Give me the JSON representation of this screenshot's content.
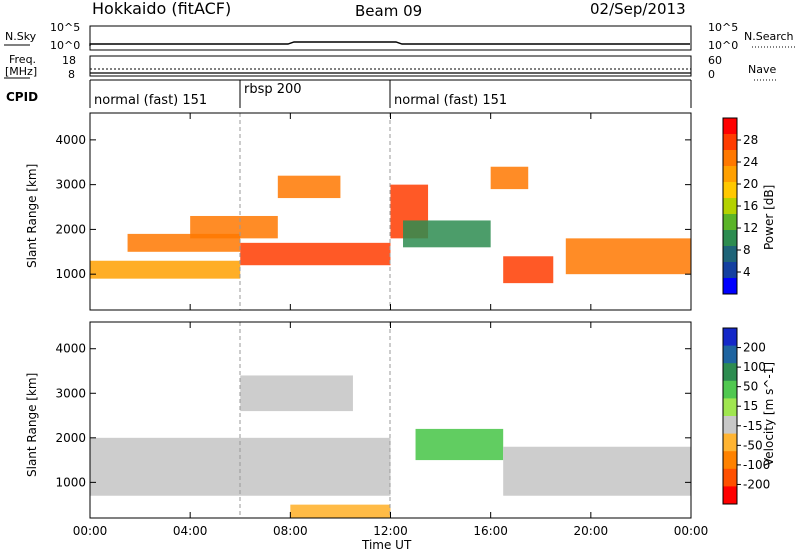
{
  "header": {
    "station": "Hokkaido (fitACF)",
    "beam": "Beam 09",
    "date": "02/Sep/2013"
  },
  "noise_panel": {
    "left_label": "N.Sky",
    "right_label": "N.Search",
    "left_ticks": [
      "10^5",
      "10^0"
    ],
    "right_ticks": [
      "10^5",
      "10^0"
    ]
  },
  "freq_panel": {
    "left_label_1": "Freq.",
    "left_label_2": "[MHz]",
    "left_ticks": [
      "18",
      "8"
    ],
    "right_label": "Nave",
    "right_ticks": [
      "60",
      "0"
    ]
  },
  "cpid_panel": {
    "label": "CPID",
    "segments": [
      {
        "name": "normal (fast) 151",
        "start_hour": 0,
        "end_hour": 6
      },
      {
        "name": "rbsp 200",
        "start_hour": 6,
        "end_hour": 12
      },
      {
        "name": "normal (fast) 151",
        "start_hour": 12,
        "end_hour": 24
      }
    ]
  },
  "time_axis": {
    "title": "Time UT",
    "ticks": [
      "00:00",
      "04:00",
      "08:00",
      "12:00",
      "16:00",
      "20:00",
      "00:00"
    ]
  },
  "range_axis": {
    "title": "Slant Range [km]",
    "ticks": [
      "1000",
      "2000",
      "3000",
      "4000"
    ]
  },
  "power_colorbar": {
    "title": "Power [dB]",
    "labels": [
      "28",
      "24",
      "20",
      "16",
      "12",
      "8",
      "4"
    ],
    "colors": [
      "#ff0000",
      "#ff3c00",
      "#ff7800",
      "#ffa000",
      "#ffc800",
      "#b4d200",
      "#5ab428",
      "#2d8c50",
      "#1e6478",
      "#1440a0",
      "#0000ff"
    ]
  },
  "velocity_colorbar": {
    "title": "Velocity [m s^-1]",
    "labels": [
      "200",
      "100",
      "50",
      "15",
      "-15",
      "-50",
      "-100",
      "-200"
    ],
    "colors": [
      "#1428c8",
      "#1e64a0",
      "#2d8c50",
      "#50c850",
      "#a0e650",
      "#c8c8c8",
      "#ffb432",
      "#ff8200",
      "#ff5000",
      "#ff0000"
    ]
  },
  "chart_data": {
    "type": "heatmap",
    "x_unit": "hours UT",
    "xlim": [
      0,
      24
    ],
    "ylim": [
      200,
      4600
    ],
    "power_bands": [
      {
        "t0": 0,
        "t1": 6,
        "r0": 900,
        "r1": 1300,
        "level": 0.72
      },
      {
        "t0": 1.5,
        "t1": 6,
        "r0": 1500,
        "r1": 1900,
        "level": 0.82
      },
      {
        "t0": 4,
        "t1": 7.5,
        "r0": 1800,
        "r1": 2300,
        "level": 0.78
      },
      {
        "t0": 6,
        "t1": 12,
        "r0": 1200,
        "r1": 1700,
        "level": 0.88
      },
      {
        "t0": 7.5,
        "t1": 10,
        "r0": 2700,
        "r1": 3200,
        "level": 0.85
      },
      {
        "t0": 12,
        "t1": 13.5,
        "r0": 1800,
        "r1": 3000,
        "level": 0.86
      },
      {
        "t0": 12.5,
        "t1": 16,
        "r0": 1600,
        "r1": 2200,
        "level": 0.35
      },
      {
        "t0": 16,
        "t1": 17.5,
        "r0": 2900,
        "r1": 3400,
        "level": 0.83
      },
      {
        "t0": 16.5,
        "t1": 18.5,
        "r0": 800,
        "r1": 1400,
        "level": 0.87
      },
      {
        "t0": 19,
        "t1": 24,
        "r0": 1000,
        "r1": 1800,
        "level": 0.84
      }
    ],
    "velocity_bands": [
      {
        "t0": 0,
        "t1": 12,
        "r0": 700,
        "r1": 2000,
        "class": "low"
      },
      {
        "t0": 6,
        "t1": 10.5,
        "r0": 2600,
        "r1": 3400,
        "class": "low"
      },
      {
        "t0": 13,
        "t1": 16.5,
        "r0": 1500,
        "r1": 2200,
        "class": "positive"
      },
      {
        "t0": 16.5,
        "t1": 24,
        "r0": 700,
        "r1": 1800,
        "class": "low"
      },
      {
        "t0": 8,
        "t1": 12,
        "r0": 200,
        "r1": 500,
        "class": "negative"
      }
    ]
  }
}
